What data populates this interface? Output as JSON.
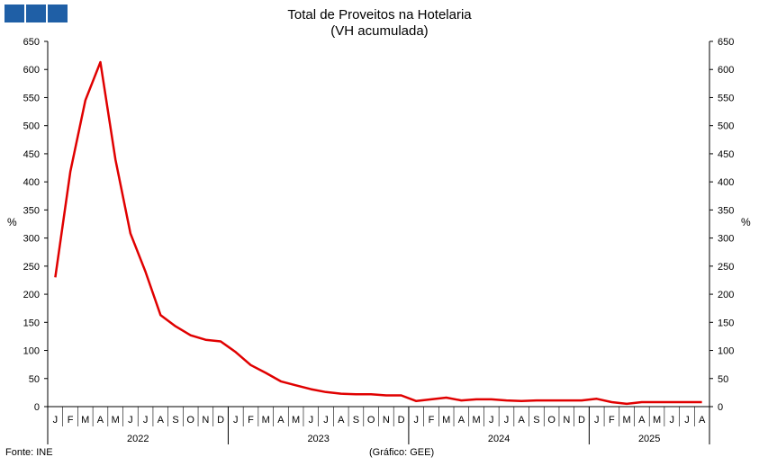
{
  "header": {
    "title": "Total de Proveitos na Hotelaria",
    "subtitle": "(VH acumulada)"
  },
  "footer": {
    "source": "Fonte: INE",
    "credit": "(Gráfico: GEE)"
  },
  "colors": {
    "series": "#e00000",
    "logo": "#1f5fa6"
  },
  "chart_data": {
    "type": "line",
    "title": "Total de Proveitos na Hotelaria",
    "subtitle": "(VH acumulada)",
    "ylabel": "%",
    "ylim": [
      0,
      650
    ],
    "yticks": [
      0,
      50,
      100,
      150,
      200,
      250,
      300,
      350,
      400,
      450,
      500,
      550,
      600,
      650
    ],
    "grid": false,
    "legend": "none",
    "month_labels": [
      "J",
      "F",
      "M",
      "A",
      "M",
      "J",
      "J",
      "A",
      "S",
      "O",
      "N",
      "D",
      "J",
      "F",
      "M",
      "A",
      "M",
      "J",
      "J",
      "A",
      "S",
      "O",
      "N",
      "D",
      "J",
      "F",
      "M",
      "A",
      "M",
      "J",
      "J",
      "A",
      "S",
      "O",
      "N",
      "D",
      "J",
      "F",
      "M",
      "A",
      "M",
      "J",
      "J",
      "A"
    ],
    "years": [
      {
        "label": "2022",
        "months": 12
      },
      {
        "label": "2023",
        "months": 12
      },
      {
        "label": "2024",
        "months": 12
      },
      {
        "label": "2025",
        "months": 8
      }
    ],
    "series": [
      {
        "values": [
          230,
          418,
          545,
          613,
          440,
          308,
          240,
          163,
          143,
          127,
          119,
          116,
          97,
          74,
          60,
          45,
          38,
          31,
          26,
          23,
          22,
          22,
          20,
          20,
          10,
          13,
          16,
          11,
          13,
          13,
          11,
          10,
          11,
          11,
          11,
          11,
          14,
          8,
          5,
          8,
          8,
          8,
          8,
          8
        ]
      }
    ]
  }
}
